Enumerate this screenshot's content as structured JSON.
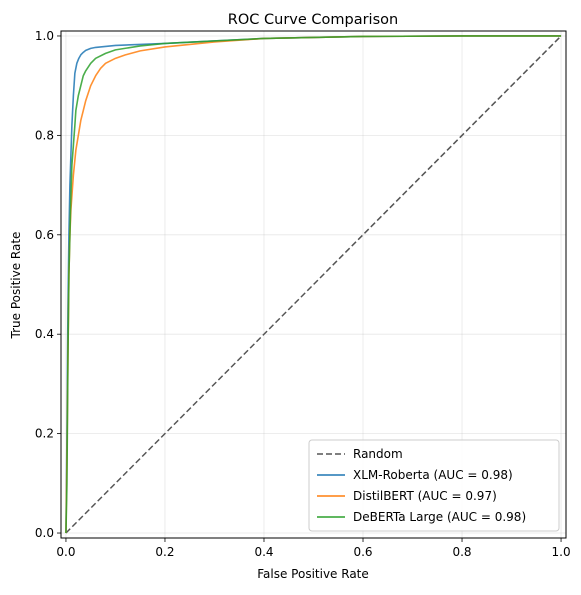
{
  "chart_data": {
    "type": "line",
    "title": "ROC Curve Comparison",
    "xlabel": "False Positive Rate",
    "ylabel": "True Positive Rate",
    "xlim": [
      -0.01,
      1.01
    ],
    "ylim": [
      -0.01,
      1.01
    ],
    "xticks": [
      0.0,
      0.2,
      0.4,
      0.6,
      0.8,
      1.0
    ],
    "xtick_labels": [
      "0.0",
      "0.2",
      "0.4",
      "0.6",
      "0.8",
      "1.0"
    ],
    "yticks": [
      0.0,
      0.2,
      0.4,
      0.6,
      0.8,
      1.0
    ],
    "ytick_labels": [
      "0.0",
      "0.2",
      "0.4",
      "0.6",
      "0.8",
      "1.0"
    ],
    "grid": true,
    "legend_position": "bottom-right",
    "series": [
      {
        "name": "Random",
        "color": "#555555",
        "style": "dashed",
        "x": [
          0.0,
          1.0
        ],
        "y": [
          0.0,
          1.0
        ]
      },
      {
        "name": "XLM-Roberta (AUC = 0.98)",
        "color": "#1f77b4",
        "style": "solid",
        "x": [
          0.0,
          0.002,
          0.004,
          0.006,
          0.008,
          0.01,
          0.012,
          0.015,
          0.018,
          0.022,
          0.026,
          0.03,
          0.035,
          0.04,
          0.05,
          0.06,
          0.08,
          0.1,
          0.15,
          0.2,
          0.3,
          0.4,
          0.6,
          0.8,
          1.0
        ],
        "y": [
          0.0,
          0.2,
          0.45,
          0.6,
          0.7,
          0.76,
          0.82,
          0.88,
          0.925,
          0.945,
          0.955,
          0.962,
          0.967,
          0.971,
          0.975,
          0.977,
          0.979,
          0.981,
          0.983,
          0.985,
          0.99,
          0.995,
          0.999,
          1.0,
          1.0
        ]
      },
      {
        "name": "DistilBERT (AUC = 0.97)",
        "color": "#ff7f0e",
        "style": "solid",
        "x": [
          0.0,
          0.002,
          0.004,
          0.006,
          0.008,
          0.01,
          0.015,
          0.02,
          0.025,
          0.03,
          0.035,
          0.04,
          0.05,
          0.06,
          0.07,
          0.08,
          0.1,
          0.12,
          0.15,
          0.2,
          0.3,
          0.4,
          0.6,
          0.8,
          1.0
        ],
        "y": [
          0.0,
          0.15,
          0.35,
          0.52,
          0.6,
          0.65,
          0.72,
          0.77,
          0.8,
          0.83,
          0.85,
          0.87,
          0.9,
          0.92,
          0.935,
          0.945,
          0.955,
          0.962,
          0.97,
          0.978,
          0.988,
          0.995,
          0.999,
          1.0,
          1.0
        ]
      },
      {
        "name": "DeBERTa Large (AUC = 0.98)",
        "color": "#2ca02c",
        "style": "solid",
        "x": [
          0.0,
          0.002,
          0.004,
          0.006,
          0.008,
          0.01,
          0.012,
          0.015,
          0.018,
          0.02,
          0.025,
          0.03,
          0.035,
          0.04,
          0.05,
          0.06,
          0.08,
          0.1,
          0.15,
          0.2,
          0.3,
          0.4,
          0.6,
          0.8,
          1.0
        ],
        "y": [
          0.0,
          0.1,
          0.35,
          0.52,
          0.6,
          0.68,
          0.74,
          0.78,
          0.82,
          0.85,
          0.88,
          0.9,
          0.92,
          0.93,
          0.945,
          0.955,
          0.965,
          0.972,
          0.98,
          0.985,
          0.99,
          0.995,
          0.999,
          1.0,
          1.0
        ]
      }
    ]
  }
}
